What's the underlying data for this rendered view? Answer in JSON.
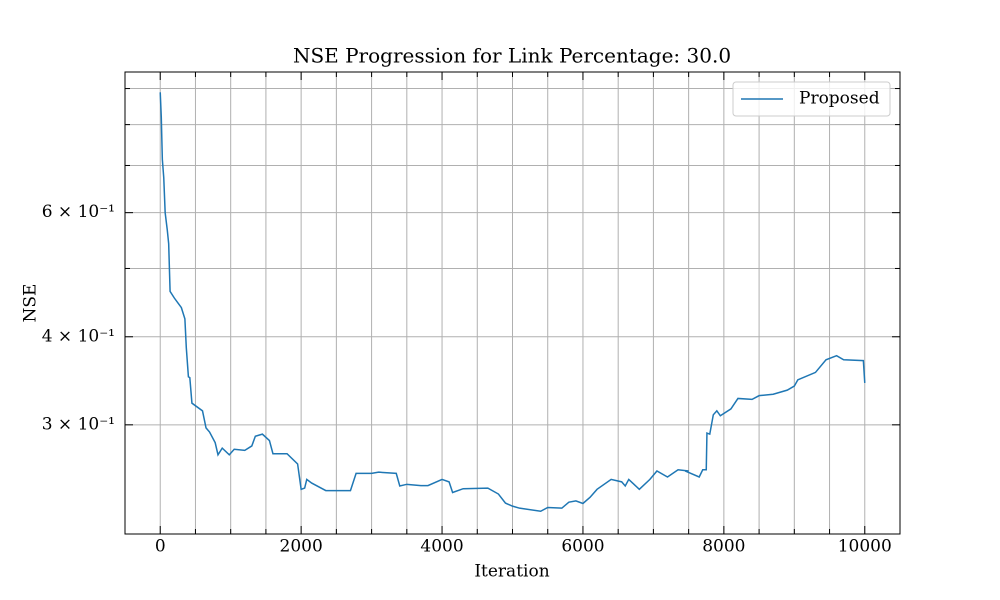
{
  "chart_data": {
    "type": "line",
    "title": "NSE Progression for Link Percentage: 30.0",
    "x_label": "Iteration",
    "y_label": "NSE",
    "x": [
      0,
      15,
      30,
      50,
      70,
      100,
      120,
      140,
      200,
      250,
      300,
      350,
      370,
      400,
      420,
      450,
      600,
      650,
      700,
      780,
      820,
      880,
      980,
      1050,
      1200,
      1300,
      1350,
      1450,
      1550,
      1600,
      1800,
      1950,
      2000,
      2050,
      2080,
      2150,
      2350,
      2700,
      2780,
      3000,
      3100,
      3350,
      3400,
      3500,
      3700,
      3800,
      4000,
      4100,
      4150,
      4300,
      4650,
      4800,
      4900,
      5000,
      5100,
      5400,
      5500,
      5700,
      5800,
      5900,
      6000,
      6100,
      6200,
      6400,
      6550,
      6600,
      6650,
      6800,
      6950,
      7050,
      7200,
      7350,
      7500,
      7450,
      7650,
      7700,
      7750,
      7760,
      7800,
      7850,
      7900,
      7950,
      8100,
      8200,
      8400,
      8500,
      8700,
      8900,
      9000,
      9050,
      9300,
      9450,
      9600,
      9700,
      9980,
      10000
    ],
    "series": [
      {
        "name": "Proposed",
        "color": "#1f77b4",
        "values": [
          0.889,
          0.82,
          0.714,
          0.673,
          0.6,
          0.567,
          0.542,
          0.464,
          0.454,
          0.447,
          0.44,
          0.424,
          0.386,
          0.351,
          0.35,
          0.322,
          0.314,
          0.297,
          0.293,
          0.283,
          0.272,
          0.278,
          0.272,
          0.277,
          0.276,
          0.28,
          0.289,
          0.291,
          0.285,
          0.273,
          0.273,
          0.264,
          0.243,
          0.244,
          0.251,
          0.248,
          0.242,
          0.242,
          0.256,
          0.256,
          0.257,
          0.256,
          0.2457,
          0.247,
          0.246,
          0.246,
          0.251,
          0.249,
          0.2405,
          0.2435,
          0.244,
          0.2393,
          0.2323,
          0.23,
          0.2285,
          0.2262,
          0.229,
          0.2285,
          0.233,
          0.234,
          0.232,
          0.2367,
          0.243,
          0.251,
          0.249,
          0.2457,
          0.251,
          0.243,
          0.251,
          0.258,
          0.253,
          0.259,
          0.258,
          0.258,
          0.253,
          0.259,
          0.259,
          0.292,
          0.291,
          0.31,
          0.314,
          0.309,
          0.316,
          0.327,
          0.326,
          0.33,
          0.3315,
          0.336,
          0.3405,
          0.3475,
          0.356,
          0.371,
          0.376,
          0.371,
          0.37,
          0.344
        ]
      }
    ],
    "xlim": [
      -500,
      10500
    ],
    "xticks": [
      0,
      2000,
      4000,
      6000,
      8000,
      10000
    ],
    "xminorticks": [
      500,
      1000,
      1500,
      2500,
      3000,
      3500,
      4500,
      5000,
      5500,
      6500,
      7000,
      7500,
      8500,
      9000,
      9500
    ],
    "ylim": [
      0.21,
      0.95
    ],
    "y_scale": "log",
    "yticks": [
      {
        "value": 0.3,
        "label": "3 × 10⁻¹"
      },
      {
        "value": 0.4,
        "label": "4 × 10⁻¹"
      },
      {
        "value": 0.6,
        "label": "6 × 10⁻¹"
      }
    ],
    "yminorticks": [
      0.5,
      0.7,
      0.8,
      0.9
    ],
    "grid": true,
    "legend": "upper right"
  }
}
